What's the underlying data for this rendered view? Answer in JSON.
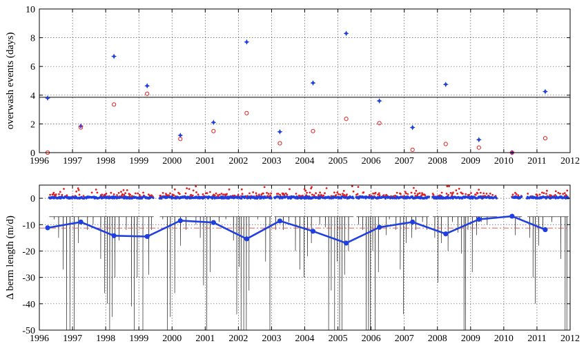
{
  "chart_data": [
    {
      "type": "scatter",
      "ylabel": "overwash events (days)",
      "xlim": [
        1996,
        2012
      ],
      "ylim": [
        0,
        10
      ],
      "xticks": [
        "1996",
        "1997",
        "1998",
        "1999",
        "2000",
        "2001",
        "2002",
        "2003",
        "2004",
        "2005",
        "2006",
        "2007",
        "2008",
        "2009",
        "2010",
        "2011",
        "2012"
      ],
      "yticks": [
        "0",
        "2",
        "4",
        "6",
        "8",
        "10"
      ],
      "grid": true,
      "series": [
        {
          "marker": "star",
          "color": "#1f3fe0",
          "x": [
            1996.25,
            1997.25,
            1998.25,
            1999.25,
            2000.25,
            2001.25,
            2002.25,
            2003.25,
            2004.25,
            2005.25,
            2006.25,
            2007.25,
            2008.25,
            2009.25,
            2010.25,
            2011.25
          ],
          "y": [
            3.8,
            1.85,
            6.7,
            4.65,
            1.2,
            2.1,
            7.7,
            1.45,
            4.85,
            8.3,
            3.6,
            1.75,
            4.75,
            0.9,
            0.0,
            4.25
          ]
        },
        {
          "marker": "circle",
          "color": "#e02020",
          "x": [
            1996.25,
            1997.25,
            1998.25,
            1999.25,
            2000.25,
            2001.25,
            2002.25,
            2003.25,
            2004.25,
            2005.25,
            2006.25,
            2007.25,
            2008.25,
            2009.25,
            2010.25,
            2011.25
          ],
          "y": [
            0.0,
            1.75,
            3.35,
            4.1,
            0.95,
            1.5,
            2.75,
            0.65,
            1.5,
            2.35,
            2.05,
            0.2,
            0.6,
            0.35,
            0.0,
            1.0
          ]
        }
      ],
      "reference_line_y": 3.85,
      "reference_line_color": "#000000"
    },
    {
      "type": "line",
      "ylabel": "Δ berm length (m/d)",
      "xlim": [
        1996,
        2012
      ],
      "ylim": [
        -50,
        5
      ],
      "xticks": [
        "1996",
        "1997",
        "1998",
        "1999",
        "2000",
        "2001",
        "2002",
        "2003",
        "2004",
        "2005",
        "2006",
        "2007",
        "2008",
        "2009",
        "2010",
        "2011",
        "2012"
      ],
      "yticks": [
        "0",
        "-10",
        "-20",
        "-30",
        "-40",
        "-50"
      ],
      "grid": true,
      "annual_mean": {
        "color": "#1f3fe0",
        "x": [
          1996.25,
          1997.25,
          1998.25,
          1999.25,
          2000.25,
          2001.25,
          2002.25,
          2003.25,
          2004.25,
          2005.25,
          2006.25,
          2007.25,
          2008.25,
          2009.25,
          2010.25,
          2011.25
        ],
        "y": [
          -11.2,
          -9.0,
          -14.2,
          -14.5,
          -8.5,
          -9.2,
          -15.4,
          -8.6,
          -12.5,
          -17.0,
          -11.0,
          -9.0,
          -13.5,
          -8.0,
          -6.8,
          -11.9
        ]
      },
      "mean_line_y": -11.3,
      "mean_line_color": "#e04040",
      "baseline_y": -7.0,
      "daily_gaps": [
        [
          1999.45,
          1999.62
        ],
        [
          2003.0,
          2003.07
        ],
        [
          2005.47,
          2005.55
        ],
        [
          2007.75,
          2007.85
        ],
        [
          2009.8,
          2010.25
        ],
        [
          2010.55,
          2010.7
        ]
      ],
      "daily_drops": [
        [
          1996.45,
          -8
        ],
        [
          1996.58,
          -15
        ],
        [
          1996.72,
          -27
        ],
        [
          1996.82,
          -50
        ],
        [
          1996.92,
          -50
        ],
        [
          1997.05,
          -50
        ],
        [
          1997.18,
          -17
        ],
        [
          1997.45,
          -12
        ],
        [
          1997.62,
          -10
        ],
        [
          1997.85,
          -23
        ],
        [
          1997.97,
          -36
        ],
        [
          1998.05,
          -40
        ],
        [
          1998.12,
          -50
        ],
        [
          1998.2,
          -45
        ],
        [
          1998.28,
          -30
        ],
        [
          1998.4,
          -16
        ],
        [
          1998.62,
          -12
        ],
        [
          1998.78,
          -41
        ],
        [
          1998.86,
          -50
        ],
        [
          1998.95,
          -30
        ],
        [
          1999.12,
          -50
        ],
        [
          1999.3,
          -29
        ],
        [
          1999.38,
          -12
        ],
        [
          1999.72,
          -8
        ],
        [
          1999.86,
          -50
        ],
        [
          1999.95,
          -45
        ],
        [
          2000.08,
          -36
        ],
        [
          2000.25,
          -18
        ],
        [
          2000.42,
          -12
        ],
        [
          2000.72,
          -10
        ],
        [
          2000.85,
          -15
        ],
        [
          2000.95,
          -33
        ],
        [
          2001.05,
          -50
        ],
        [
          2001.15,
          -28
        ],
        [
          2001.42,
          -9
        ],
        [
          2001.62,
          -8
        ],
        [
          2001.85,
          -16
        ],
        [
          2001.95,
          -44
        ],
        [
          2002.02,
          -26
        ],
        [
          2002.08,
          -50
        ],
        [
          2002.16,
          -50
        ],
        [
          2002.24,
          -50
        ],
        [
          2002.32,
          -35
        ],
        [
          2002.58,
          -8
        ],
        [
          2002.82,
          -24
        ],
        [
          2002.95,
          -50
        ],
        [
          2003.12,
          -12
        ],
        [
          2003.35,
          -12
        ],
        [
          2003.52,
          -9
        ],
        [
          2003.72,
          -20
        ],
        [
          2003.85,
          -27
        ],
        [
          2003.98,
          -30
        ],
        [
          2004.08,
          -22
        ],
        [
          2004.2,
          -17
        ],
        [
          2004.45,
          -10
        ],
        [
          2004.62,
          -11
        ],
        [
          2004.72,
          -50
        ],
        [
          2004.8,
          -35
        ],
        [
          2004.9,
          -50
        ],
        [
          2004.98,
          -24
        ],
        [
          2005.05,
          -50
        ],
        [
          2005.12,
          -50
        ],
        [
          2005.2,
          -29
        ],
        [
          2005.32,
          -20
        ],
        [
          2005.62,
          -10
        ],
        [
          2005.75,
          -12
        ],
        [
          2005.85,
          -50
        ],
        [
          2005.92,
          -50
        ],
        [
          2005.98,
          -50
        ],
        [
          2006.05,
          -20
        ],
        [
          2006.12,
          -50
        ],
        [
          2006.22,
          -28
        ],
        [
          2006.45,
          -14
        ],
        [
          2006.55,
          -8
        ],
        [
          2006.75,
          -12
        ],
        [
          2006.88,
          -27
        ],
        [
          2006.98,
          -44
        ],
        [
          2007.06,
          -17
        ],
        [
          2007.22,
          -15
        ],
        [
          2007.35,
          -12
        ],
        [
          2007.55,
          -9
        ],
        [
          2007.68,
          -12
        ],
        [
          2007.92,
          -15
        ],
        [
          2008.02,
          -32
        ],
        [
          2008.12,
          -17
        ],
        [
          2008.32,
          -20
        ],
        [
          2008.45,
          -9
        ],
        [
          2008.62,
          -13
        ],
        [
          2008.72,
          -21
        ],
        [
          2008.8,
          -50
        ],
        [
          2008.85,
          -50
        ],
        [
          2008.92,
          -12
        ],
        [
          2009.05,
          -28
        ],
        [
          2009.18,
          -14
        ],
        [
          2009.32,
          -9
        ],
        [
          2009.5,
          -10
        ],
        [
          2010.35,
          -14
        ],
        [
          2010.48,
          -8
        ],
        [
          2010.78,
          -15
        ],
        [
          2010.88,
          -30
        ],
        [
          2010.95,
          -40
        ],
        [
          2011.05,
          -18
        ],
        [
          2011.18,
          -12
        ],
        [
          2011.45,
          -9
        ],
        [
          2011.72,
          -23
        ],
        [
          2011.85,
          -50
        ],
        [
          2011.9,
          -50
        ]
      ],
      "top_markers_blue_y": 0.3,
      "top_markers_red_color": "#e02020",
      "top_markers_blue_color": "#1f3fe0"
    }
  ]
}
